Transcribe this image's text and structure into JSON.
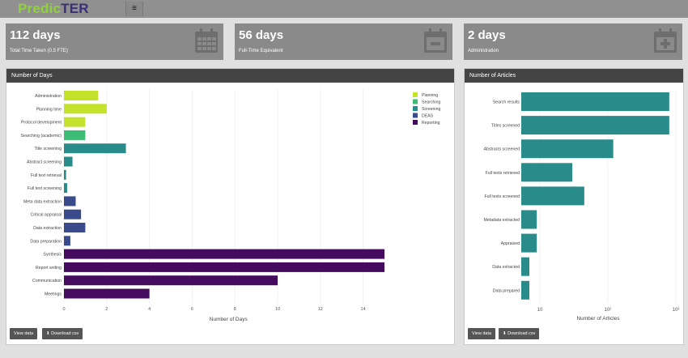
{
  "app": {
    "title_p": "Predic",
    "title_t": "TER",
    "menu_glyph": "≡"
  },
  "cards": [
    {
      "value": "112 days",
      "label": "Total Time Taken (0.5 FTE)",
      "icon": "calendar-icon"
    },
    {
      "value": "56 days",
      "label": "Full-Time Equivalent",
      "icon": "calendar-minus-icon"
    },
    {
      "value": "2 days",
      "label": "Administration",
      "icon": "calendar-plus-icon"
    }
  ],
  "left_panel": {
    "header": "Number of Days",
    "buttons": {
      "view": "View data",
      "download": "Download csv",
      "download_icon": "download-icon"
    }
  },
  "right_panel": {
    "header": "Number of Articles",
    "buttons": {
      "view": "View data",
      "download": "Download csv",
      "download_icon": "download-icon"
    }
  },
  "colors": {
    "Planning": "#c4e12b",
    "Searching": "#3dbc76",
    "Screening": "#2a8b8b",
    "DEAS": "#3a4b8c",
    "Reporting": "#450b5e"
  },
  "chart_data": [
    {
      "type": "bar",
      "orientation": "horizontal",
      "xlabel": "Number of Days",
      "xlim": [
        0,
        15.5
      ],
      "xticks": [
        0,
        2,
        4,
        6,
        8,
        10,
        12,
        14
      ],
      "legend": [
        "Planning",
        "Searching",
        "Screening",
        "DEAS",
        "Reporting"
      ],
      "legend_position": "top-right",
      "categories": [
        "Administration",
        "Planning time",
        "Protocol development",
        "Searching (academic)",
        "Title screening",
        "Abstract screening",
        "Full text retrieval",
        "Full text screening",
        "Meta data extraction",
        "Critical appraisal",
        "Data extraction",
        "Data preparation",
        "Synthesis",
        "Report writing",
        "Communication",
        "Meetings"
      ],
      "values": [
        1.6,
        2.0,
        1.0,
        1.0,
        2.9,
        0.4,
        0.1,
        0.15,
        0.55,
        0.8,
        1.0,
        0.3,
        15.0,
        15.0,
        10.0,
        4.0
      ],
      "groups": [
        "Planning",
        "Planning",
        "Planning",
        "Searching",
        "Screening",
        "Screening",
        "Screening",
        "Screening",
        "DEAS",
        "DEAS",
        "DEAS",
        "DEAS",
        "Reporting",
        "Reporting",
        "Reporting",
        "Reporting"
      ],
      "grid": true
    },
    {
      "type": "bar",
      "orientation": "horizontal",
      "xlabel": "Number of Articles",
      "xscale": "log",
      "xticks": [
        "10",
        "10²",
        "10³"
      ],
      "categories": [
        "Search results",
        "Titles screened",
        "Abstracts screened",
        "Full texts retrieved",
        "Full texts screened",
        "Metadata extracted",
        "Appraised",
        "Data extracted",
        "Data prepared"
      ],
      "values": [
        800,
        800,
        120,
        30,
        45,
        9,
        9,
        7,
        7
      ],
      "color": "#2a8b8b",
      "grid": true
    }
  ]
}
